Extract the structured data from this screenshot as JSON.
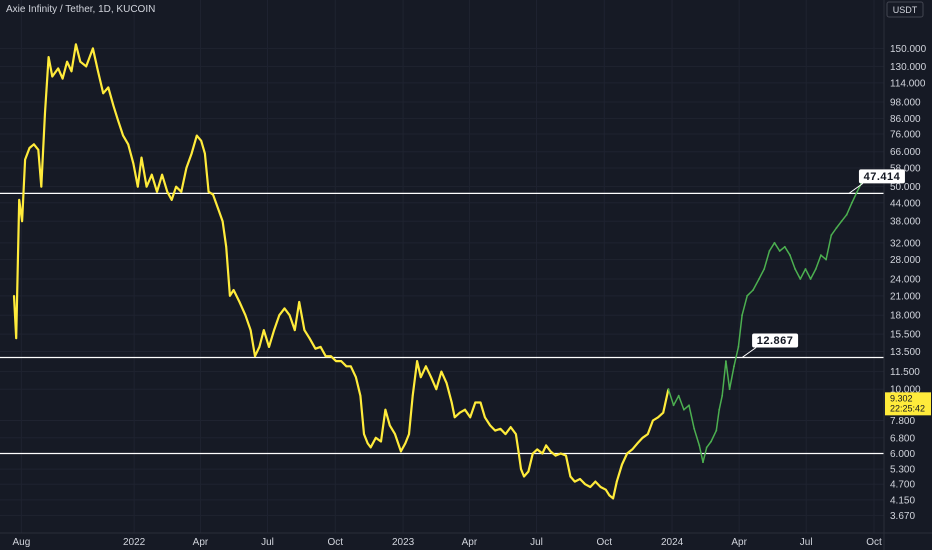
{
  "title": "Axie Infinity / Tether, 1D, KUCOIN",
  "currency_button": "USDT",
  "chart_data": {
    "type": "line",
    "title": "Axie Infinity / Tether, 1D, KUCOIN",
    "y_scale": "log",
    "ylim": [
      3.4,
      185
    ],
    "xlim": [
      "2021-07-22",
      "2024-10-01"
    ],
    "y_ticks": [
      "150.000",
      "130.000",
      "114.000",
      "98.000",
      "86.000",
      "76.000",
      "66.000",
      "58.000",
      "50.000",
      "44.000",
      "38.000",
      "32.000",
      "28.000",
      "24.000",
      "21.000",
      "18.000",
      "15.500",
      "13.500",
      "11.500",
      "10.000",
      "7.800",
      "6.800",
      "6.000",
      "5.300",
      "4.700",
      "4.150",
      "3.670"
    ],
    "x_ticks": [
      {
        "date": "2021-08-01",
        "label": "Aug"
      },
      {
        "date": "2022-01-01",
        "label": "2022"
      },
      {
        "date": "2022-04-01",
        "label": "Apr"
      },
      {
        "date": "2022-07-01",
        "label": "Jul"
      },
      {
        "date": "2022-10-01",
        "label": "Oct"
      },
      {
        "date": "2023-01-01",
        "label": "2023"
      },
      {
        "date": "2023-04-01",
        "label": "Apr"
      },
      {
        "date": "2023-07-01",
        "label": "Jul"
      },
      {
        "date": "2023-10-01",
        "label": "Oct"
      },
      {
        "date": "2024-01-01",
        "label": "2024"
      },
      {
        "date": "2024-04-01",
        "label": "Apr"
      },
      {
        "date": "2024-07-01",
        "label": "Jul"
      },
      {
        "date": "2024-10-01",
        "label": "Oct"
      }
    ],
    "series": [
      {
        "color": "#ffeb3b",
        "points": [
          [
            "2021-07-22",
            21
          ],
          [
            "2021-07-25",
            15
          ],
          [
            "2021-07-29",
            45
          ],
          [
            "2021-08-02",
            38
          ],
          [
            "2021-08-06",
            62
          ],
          [
            "2021-08-12",
            68
          ],
          [
            "2021-08-18",
            70
          ],
          [
            "2021-08-24",
            67
          ],
          [
            "2021-08-28",
            50
          ],
          [
            "2021-09-02",
            90
          ],
          [
            "2021-09-07",
            140
          ],
          [
            "2021-09-12",
            120
          ],
          [
            "2021-09-20",
            128
          ],
          [
            "2021-09-26",
            118
          ],
          [
            "2021-10-02",
            135
          ],
          [
            "2021-10-08",
            125
          ],
          [
            "2021-10-14",
            155
          ],
          [
            "2021-10-20",
            135
          ],
          [
            "2021-10-28",
            130
          ],
          [
            "2021-11-06",
            150
          ],
          [
            "2021-11-13",
            125
          ],
          [
            "2021-11-20",
            105
          ],
          [
            "2021-11-27",
            110
          ],
          [
            "2021-12-04",
            95
          ],
          [
            "2021-12-10",
            85
          ],
          [
            "2021-12-17",
            75
          ],
          [
            "2021-12-24",
            70
          ],
          [
            "2021-12-31",
            60
          ],
          [
            "2022-01-06",
            50
          ],
          [
            "2022-01-11",
            63
          ],
          [
            "2022-01-18",
            50
          ],
          [
            "2022-01-25",
            55
          ],
          [
            "2022-02-01",
            48
          ],
          [
            "2022-02-08",
            55
          ],
          [
            "2022-02-15",
            48
          ],
          [
            "2022-02-21",
            45
          ],
          [
            "2022-02-27",
            50
          ],
          [
            "2022-03-06",
            48
          ],
          [
            "2022-03-13",
            58
          ],
          [
            "2022-03-20",
            65
          ],
          [
            "2022-03-27",
            75
          ],
          [
            "2022-04-02",
            72
          ],
          [
            "2022-04-07",
            65
          ],
          [
            "2022-04-12",
            48
          ],
          [
            "2022-04-18",
            47
          ],
          [
            "2022-04-25",
            42
          ],
          [
            "2022-05-01",
            38
          ],
          [
            "2022-05-06",
            31
          ],
          [
            "2022-05-11",
            21
          ],
          [
            "2022-05-16",
            22
          ],
          [
            "2022-05-24",
            20
          ],
          [
            "2022-06-01",
            18
          ],
          [
            "2022-06-08",
            16
          ],
          [
            "2022-06-14",
            13
          ],
          [
            "2022-06-20",
            14
          ],
          [
            "2022-06-26",
            16
          ],
          [
            "2022-07-03",
            14
          ],
          [
            "2022-07-10",
            16
          ],
          [
            "2022-07-17",
            18
          ],
          [
            "2022-07-24",
            19
          ],
          [
            "2022-07-31",
            18
          ],
          [
            "2022-08-07",
            16
          ],
          [
            "2022-08-13",
            20
          ],
          [
            "2022-08-20",
            16
          ],
          [
            "2022-08-27",
            15
          ],
          [
            "2022-09-04",
            13.8
          ],
          [
            "2022-09-11",
            14
          ],
          [
            "2022-09-18",
            13
          ],
          [
            "2022-09-25",
            13
          ],
          [
            "2022-10-02",
            12.5
          ],
          [
            "2022-10-09",
            12.5
          ],
          [
            "2022-10-16",
            12
          ],
          [
            "2022-10-22",
            12
          ],
          [
            "2022-10-29",
            11
          ],
          [
            "2022-11-04",
            9.5
          ],
          [
            "2022-11-09",
            7
          ],
          [
            "2022-11-14",
            6.5
          ],
          [
            "2022-11-18",
            6.3
          ],
          [
            "2022-11-25",
            6.8
          ],
          [
            "2022-12-02",
            6.6
          ],
          [
            "2022-12-08",
            8.5
          ],
          [
            "2022-12-14",
            7.5
          ],
          [
            "2022-12-21",
            7
          ],
          [
            "2022-12-29",
            6.1
          ],
          [
            "2023-01-04",
            6.5
          ],
          [
            "2023-01-09",
            7
          ],
          [
            "2023-01-14",
            9.5
          ],
          [
            "2023-01-20",
            12.5
          ],
          [
            "2023-01-25",
            11
          ],
          [
            "2023-02-01",
            12
          ],
          [
            "2023-02-08",
            11
          ],
          [
            "2023-02-15",
            10
          ],
          [
            "2023-02-22",
            11.5
          ],
          [
            "2023-03-01",
            10.5
          ],
          [
            "2023-03-08",
            9
          ],
          [
            "2023-03-12",
            8
          ],
          [
            "2023-03-19",
            8.3
          ],
          [
            "2023-03-26",
            8.5
          ],
          [
            "2023-04-02",
            8
          ],
          [
            "2023-04-09",
            9
          ],
          [
            "2023-04-16",
            9
          ],
          [
            "2023-04-22",
            8
          ],
          [
            "2023-04-29",
            7.5
          ],
          [
            "2023-05-06",
            7.2
          ],
          [
            "2023-05-13",
            7.3
          ],
          [
            "2023-05-20",
            7
          ],
          [
            "2023-05-27",
            7.4
          ],
          [
            "2023-06-03",
            7
          ],
          [
            "2023-06-07",
            6
          ],
          [
            "2023-06-10",
            5.3
          ],
          [
            "2023-06-14",
            5
          ],
          [
            "2023-06-20",
            5.2
          ],
          [
            "2023-06-26",
            6
          ],
          [
            "2023-07-02",
            6.2
          ],
          [
            "2023-07-09",
            6
          ],
          [
            "2023-07-14",
            6.4
          ],
          [
            "2023-07-20",
            6.1
          ],
          [
            "2023-07-27",
            5.9
          ],
          [
            "2023-08-03",
            6
          ],
          [
            "2023-08-10",
            5.9
          ],
          [
            "2023-08-16",
            5
          ],
          [
            "2023-08-22",
            4.8
          ],
          [
            "2023-08-29",
            4.9
          ],
          [
            "2023-09-05",
            4.7
          ],
          [
            "2023-09-12",
            4.6
          ],
          [
            "2023-09-19",
            4.8
          ],
          [
            "2023-09-26",
            4.6
          ],
          [
            "2023-10-03",
            4.5
          ],
          [
            "2023-10-08",
            4.3
          ],
          [
            "2023-10-13",
            4.2
          ],
          [
            "2023-10-18",
            4.8
          ],
          [
            "2023-10-25",
            5.5
          ],
          [
            "2023-11-01",
            6
          ],
          [
            "2023-11-08",
            6.2
          ],
          [
            "2023-11-15",
            6.5
          ],
          [
            "2023-11-22",
            6.8
          ],
          [
            "2023-11-29",
            7
          ],
          [
            "2023-12-06",
            7.8
          ],
          [
            "2023-12-13",
            8
          ],
          [
            "2023-12-20",
            8.3
          ],
          [
            "2023-12-27",
            10
          ]
        ]
      },
      {
        "color": "#4caf50",
        "points": [
          [
            "2023-12-27",
            10
          ],
          [
            "2024-01-03",
            8.8
          ],
          [
            "2024-01-10",
            9.5
          ],
          [
            "2024-01-17",
            8.5
          ],
          [
            "2024-01-24",
            8.8
          ],
          [
            "2024-01-31",
            7.3
          ],
          [
            "2024-02-07",
            6.4
          ],
          [
            "2024-02-12",
            5.6
          ],
          [
            "2024-02-17",
            6.3
          ],
          [
            "2024-02-23",
            6.6
          ],
          [
            "2024-03-01",
            7.2
          ],
          [
            "2024-03-05",
            8.5
          ],
          [
            "2024-03-09",
            9.5
          ],
          [
            "2024-03-14",
            12.5
          ],
          [
            "2024-03-19",
            10
          ],
          [
            "2024-03-25",
            12
          ],
          [
            "2024-03-31",
            14
          ],
          [
            "2024-04-05",
            18
          ],
          [
            "2024-04-12",
            21
          ],
          [
            "2024-04-20",
            22
          ],
          [
            "2024-04-28",
            24
          ],
          [
            "2024-05-05",
            26
          ],
          [
            "2024-05-12",
            30
          ],
          [
            "2024-05-19",
            32
          ],
          [
            "2024-05-26",
            30
          ],
          [
            "2024-06-02",
            31
          ],
          [
            "2024-06-09",
            29
          ],
          [
            "2024-06-16",
            26
          ],
          [
            "2024-06-23",
            24
          ],
          [
            "2024-06-30",
            26
          ],
          [
            "2024-07-07",
            24
          ],
          [
            "2024-07-14",
            26
          ],
          [
            "2024-07-21",
            29
          ],
          [
            "2024-07-28",
            28
          ],
          [
            "2024-08-04",
            34
          ],
          [
            "2024-08-11",
            36
          ],
          [
            "2024-08-18",
            38
          ],
          [
            "2024-08-25",
            40
          ],
          [
            "2024-09-01",
            44
          ],
          [
            "2024-09-08",
            48
          ],
          [
            "2024-09-15",
            52
          ],
          [
            "2024-09-22",
            54
          ]
        ]
      }
    ],
    "levels": [
      {
        "value": 47.414,
        "label": "47.414",
        "label_date": "2024-08-28"
      },
      {
        "value": 12.867,
        "label": "12.867",
        "label_date": "2024-04-05"
      },
      {
        "value": 6.0
      }
    ],
    "current_price": {
      "value": 9.302,
      "label": "9.302",
      "countdown": "22:25:42",
      "color": "#ffeb3b"
    }
  }
}
